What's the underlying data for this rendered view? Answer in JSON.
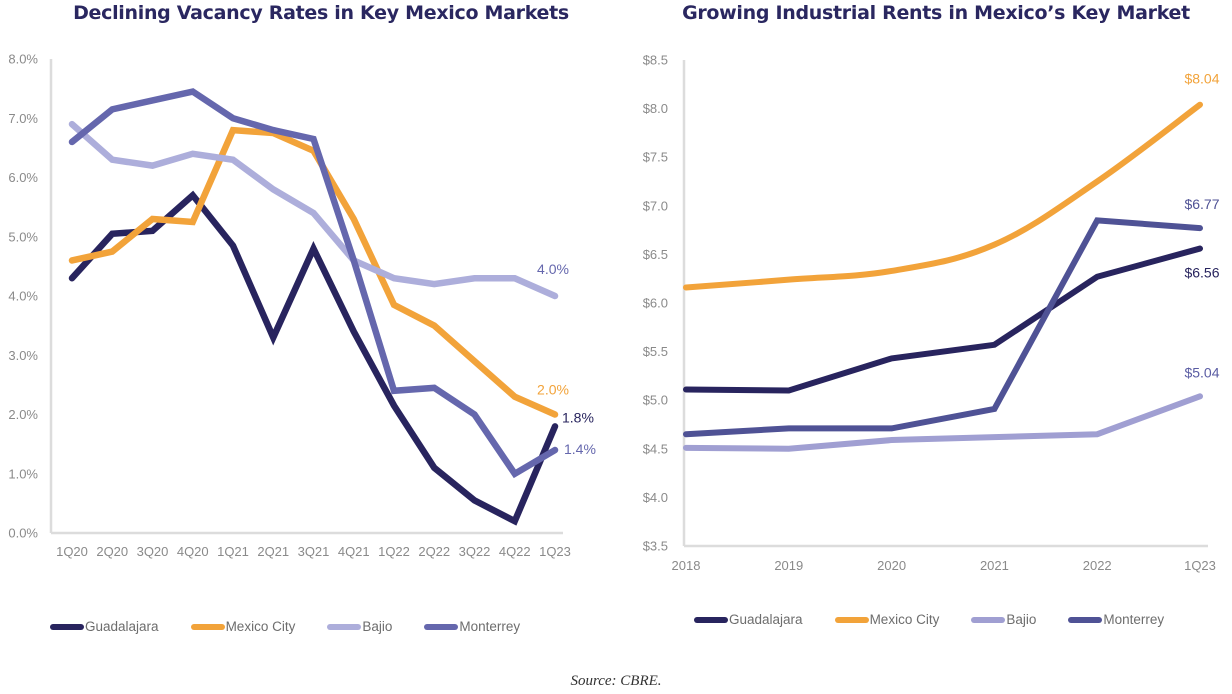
{
  "chart_data": [
    {
      "type": "line",
      "title": "Declining Vacancy Rates in Key Mexico Markets",
      "xlabel": "",
      "ylabel": "",
      "categories": [
        "1Q20",
        "2Q20",
        "3Q20",
        "4Q20",
        "1Q21",
        "2Q21",
        "3Q21",
        "4Q21",
        "1Q22",
        "2Q22",
        "3Q22",
        "4Q22",
        "1Q23"
      ],
      "yticks": [
        "0.0%",
        "1.0%",
        "2.0%",
        "3.0%",
        "4.0%",
        "5.0%",
        "6.0%",
        "7.0%",
        "8.0%"
      ],
      "ylim": [
        0,
        8
      ],
      "grid": false,
      "legend_position": "bottom",
      "series": [
        {
          "name": "Guadalajara",
          "color": "#28245e",
          "values": [
            4.3,
            5.05,
            5.1,
            5.7,
            4.85,
            3.3,
            4.8,
            3.4,
            2.15,
            1.1,
            0.55,
            0.2,
            1.8
          ],
          "end_label": "1.8%",
          "label_color": "#28245e"
        },
        {
          "name": "Mexico City",
          "color": "#f2a33a",
          "values": [
            4.6,
            4.75,
            5.3,
            5.25,
            6.8,
            6.75,
            6.45,
            5.3,
            3.85,
            3.5,
            2.9,
            2.3,
            2.0
          ],
          "end_label": "2.0%",
          "label_color": "#f2a33a"
        },
        {
          "name": "Bajio",
          "color": "#adaedb",
          "values": [
            6.9,
            6.3,
            6.2,
            6.4,
            6.3,
            5.8,
            5.4,
            4.6,
            4.3,
            4.2,
            4.3,
            4.3,
            4.0
          ],
          "end_label": "4.0%",
          "label_color": "#6567ad"
        },
        {
          "name": "Monterrey",
          "color": "#6567ad",
          "values": [
            6.6,
            7.15,
            7.3,
            7.45,
            7.0,
            6.8,
            6.65,
            4.6,
            2.4,
            2.45,
            2.0,
            1.0,
            1.4
          ],
          "end_label": "1.4%",
          "label_color": "#6567ad"
        }
      ]
    },
    {
      "type": "line",
      "title": "Growing Industrial Rents in Mexico’s Key Market",
      "xlabel": "",
      "ylabel": "",
      "categories": [
        "2018",
        "2019",
        "2020",
        "2021",
        "2022",
        "1Q23"
      ],
      "yticks": [
        "$3.5",
        "$4.0",
        "$4.5",
        "$5.0",
        "$5.5",
        "$6.0",
        "$6.5",
        "$7.0",
        "$7.5",
        "$8.0",
        "$8.5"
      ],
      "ylim": [
        3.5,
        8.5
      ],
      "grid": false,
      "legend_position": "bottom",
      "series": [
        {
          "name": "Guadalajara",
          "color": "#28245e",
          "values": [
            5.11,
            5.1,
            5.43,
            5.57,
            6.27,
            6.56
          ],
          "end_label": "$6.56",
          "label_color": "#28245e",
          "smooth": false
        },
        {
          "name": "Mexico City",
          "color": "#f2a33a",
          "values": [
            6.16,
            6.24,
            6.33,
            6.6,
            7.25,
            8.04
          ],
          "end_label": "$8.04",
          "label_color": "#f2a33a",
          "smooth": true
        },
        {
          "name": "Bajio",
          "color": "#a09fd2",
          "values": [
            4.51,
            4.5,
            4.59,
            4.62,
            4.65,
            5.04
          ],
          "end_label": "$5.04",
          "label_color": "#5a5ca3",
          "smooth": false
        },
        {
          "name": "Monterrey",
          "color": "#4f5295",
          "values": [
            4.65,
            4.71,
            4.71,
            4.91,
            6.85,
            6.77
          ],
          "end_label": "$6.77",
          "label_color": "#4f5295",
          "smooth": false
        }
      ]
    }
  ],
  "source": "Source: CBRE."
}
